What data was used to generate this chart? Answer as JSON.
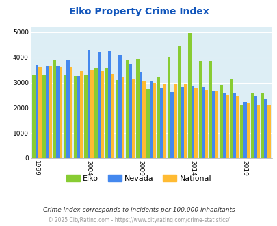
{
  "title": "Elko Property Crime Index",
  "title_color": "#1155bb",
  "subtitle": "Crime Index corresponds to incidents per 100,000 inhabitants",
  "footer": "© 2025 CityRating.com - https://www.cityrating.com/crime-statistics/",
  "years": [
    1999,
    2000,
    2001,
    2002,
    2003,
    2004,
    2005,
    2006,
    2007,
    2008,
    2009,
    2010,
    2011,
    2012,
    2013,
    2014,
    2015,
    2016,
    2017,
    2018,
    2019,
    2020,
    2021
  ],
  "elko": [
    3300,
    3300,
    3880,
    3280,
    3250,
    3280,
    3550,
    3550,
    3100,
    3900,
    3950,
    2750,
    3220,
    4020,
    4450,
    4970,
    3850,
    3870,
    2920,
    3160,
    2130,
    2580,
    2570
  ],
  "nevada": [
    3700,
    3680,
    3680,
    3880,
    3270,
    4280,
    4200,
    4230,
    4080,
    3760,
    3430,
    3060,
    2760,
    2600,
    2820,
    2860,
    2820,
    2660,
    2590,
    2570,
    2240,
    2480,
    2340
  ],
  "national": [
    3600,
    3650,
    3620,
    3600,
    3480,
    3510,
    3440,
    3340,
    3220,
    3160,
    3040,
    2980,
    2960,
    2960,
    2940,
    2800,
    2730,
    2660,
    2510,
    2460,
    2200,
    2120,
    2080
  ],
  "elko_color": "#88cc33",
  "nevada_color": "#4488ee",
  "national_color": "#ffbb33",
  "bg_color": "#ddeef5",
  "ylim": [
    0,
    5200
  ],
  "yticks": [
    0,
    1000,
    2000,
    3000,
    4000,
    5000
  ],
  "xtick_years": [
    1999,
    2004,
    2009,
    2014,
    2019
  ],
  "figsize": [
    4.06,
    3.3
  ],
  "dpi": 100
}
